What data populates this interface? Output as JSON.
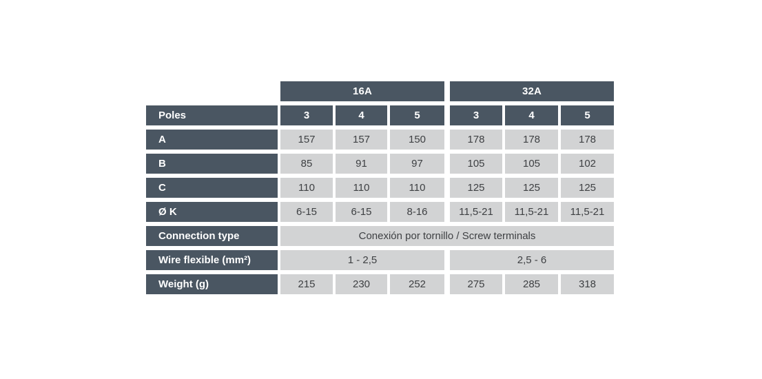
{
  "table": {
    "title_semantics": "Connector dimensions and specifications table",
    "colors": {
      "header_bg": "#4a5662",
      "header_text": "#ffffff",
      "cell_bg": "#d2d3d4",
      "cell_text": "#3e4043",
      "page_bg": "#ffffff"
    },
    "group_16a": "16A",
    "group_32a": "32A",
    "poles_label": "Poles",
    "poles": [
      "3",
      "4",
      "5",
      "3",
      "4",
      "5"
    ],
    "rows": [
      {
        "label": "A",
        "values": [
          "157",
          "157",
          "150",
          "178",
          "178",
          "178"
        ]
      },
      {
        "label": "B",
        "values": [
          "85",
          "91",
          "97",
          "105",
          "105",
          "102"
        ]
      },
      {
        "label": "C",
        "values": [
          "110",
          "110",
          "110",
          "125",
          "125",
          "125"
        ]
      },
      {
        "label": "Ø K",
        "values": [
          "6-15",
          "6-15",
          "8-16",
          "11,5-21",
          "11,5-21",
          "11,5-21"
        ]
      }
    ],
    "connection_row": {
      "label": "Connection type",
      "value": "Conexión por tornillo / Screw terminals"
    },
    "wire_row": {
      "label": "Wire flexible (mm²)",
      "value_16a": "1 - 2,5",
      "value_32a": "2,5 - 6"
    },
    "weight_row": {
      "label": "Weight (g)",
      "values": [
        "215",
        "230",
        "252",
        "275",
        "285",
        "318"
      ]
    }
  }
}
